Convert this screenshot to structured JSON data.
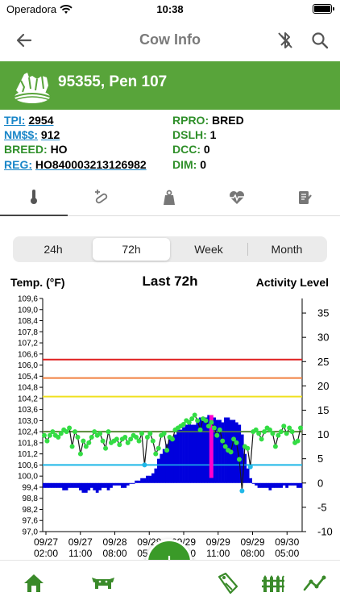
{
  "status_bar": {
    "carrier": "Operadora",
    "time": "10:38"
  },
  "nav": {
    "title": "Cow Info",
    "icons": [
      "back-arrow-icon",
      "bluetooth-disabled-icon",
      "search-icon"
    ]
  },
  "cow": {
    "title": "95355, Pen 107"
  },
  "info_left": [
    {
      "key": "TPI:",
      "value": "2954",
      "link": true
    },
    {
      "key": "NM$$:",
      "value": "912",
      "link": true
    },
    {
      "key": "BREED:",
      "value": "HO",
      "link": false
    },
    {
      "key": "REG:",
      "value": "HO840003213126982",
      "link": true
    }
  ],
  "info_right": [
    {
      "key": "RPRO:",
      "value": "BRED"
    },
    {
      "key": "DSLH:",
      "value": "1"
    },
    {
      "key": "DCC:",
      "value": "0"
    },
    {
      "key": "DIM:",
      "value": "0"
    }
  ],
  "tabs": [
    "thermometer-icon",
    "medication-icon",
    "weight-icon",
    "heartbeat-icon",
    "notes-icon"
  ],
  "periods": {
    "options": [
      "24h",
      "72h",
      "Week",
      "Month"
    ],
    "selected": "72h"
  },
  "chart_header": {
    "left": "Temp. (°F)",
    "center": "Last 72h",
    "right": "Activity Level"
  },
  "chart_data": {
    "type": "line",
    "title": "Last 72h",
    "ylabel": "Temp. (°F)",
    "y2label": "Activity Level",
    "ylim": [
      97.0,
      109.6
    ],
    "y2lim": [
      -10,
      38
    ],
    "left_ticks": [
      "109,6",
      "109,0",
      "108,4",
      "107,8",
      "107,2",
      "106,6",
      "106,0",
      "105,4",
      "104,8",
      "104,2",
      "103,6",
      "103,0",
      "102,4",
      "101,8",
      "101,2",
      "100,6",
      "100,0",
      "99,4",
      "98,8",
      "98,2",
      "97,6",
      "97,0"
    ],
    "right_ticks": [
      "35",
      "30",
      "25",
      "20",
      "15",
      "10",
      "5",
      "0",
      "-5",
      "-10"
    ],
    "x_ticks": [
      "09/27\n02:00",
      "09/27\n11:00",
      "09/28\n08:00",
      "09/28\n05:00",
      "09/29\n02:00",
      "09/29\n11:00",
      "09/29\n08:00",
      "09/30\n05:00"
    ],
    "reference_lines": [
      {
        "value": 106.3,
        "color": "#e02020"
      },
      {
        "value": 105.3,
        "color": "#f08040"
      },
      {
        "value": 104.3,
        "color": "#f0e020"
      },
      {
        "value": 102.4,
        "color": "#5a8a3a"
      },
      {
        "value": 100.6,
        "color": "#20b8e8"
      }
    ],
    "temperature_series": {
      "name": "Temperature",
      "color": "#1a1a1a",
      "point_color": "#33dd44",
      "values": [
        102.2,
        101.9,
        102.2,
        102.4,
        102.2,
        102.1,
        102.3,
        102.5,
        102.4,
        102.6,
        101.6,
        102.4,
        102.1,
        101.2,
        101.9,
        101.6,
        101.8,
        102.1,
        102.4,
        102.2,
        102.3,
        101.9,
        101.5,
        102.4,
        101.8,
        101.9,
        102.0,
        101.7,
        102.0,
        102.1,
        101.8,
        102.0,
        102.2,
        102.1,
        101.9,
        102.3,
        100.6,
        102.1,
        102.3,
        101.9,
        101.2,
        101.5,
        102.2,
        102.3,
        101.4,
        102.1,
        102.0,
        102.5,
        102.6,
        102.7,
        102.8,
        103.0,
        102.9,
        103.1,
        103.3,
        103.0,
        102.5,
        103.1,
        103.0,
        102.7,
        102.9,
        102.6,
        102.2,
        102.5,
        101.9,
        101.6,
        101.4,
        101.3,
        102.0,
        101.8,
        100.9,
        99.2,
        101.6,
        101.5,
        100.5,
        102.4,
        102.5,
        102.3,
        102.0,
        102.4,
        102.6,
        102.5,
        102.3,
        101.6,
        102.2,
        102.4,
        102.7,
        102.3,
        102.6,
        102.4,
        101.8,
        101.9,
        102.6
      ]
    },
    "activity_series": {
      "name": "Activity Level",
      "color": "#0000dd",
      "values": [
        -1,
        -1,
        -1,
        -1,
        -1,
        -1,
        -1,
        -1.5,
        -1.5,
        -1,
        -1,
        -1,
        -1,
        -1.5,
        -2,
        -2,
        -1.5,
        -1,
        -1.5,
        -2,
        -1.5,
        -1,
        -1,
        -1.5,
        -1,
        -0.5,
        -0.5,
        -0.5,
        -1,
        -1,
        -0.5,
        0,
        0,
        0.5,
        0.5,
        1,
        1,
        1.5,
        1.5,
        2,
        3,
        5,
        6,
        7,
        8,
        9,
        9.5,
        10,
        11,
        11,
        11.5,
        12,
        12.5,
        12,
        12,
        13,
        13.5,
        13,
        13.5,
        14,
        14,
        13.5,
        13,
        13,
        12.5,
        13.5,
        13.5,
        13,
        13,
        12.5,
        12,
        10,
        6,
        3,
        1,
        0,
        -0.5,
        -1,
        -1,
        -1,
        -1,
        -1.5,
        -1,
        -1,
        -1,
        -1,
        -0.5,
        -1,
        -0.5,
        -0.5,
        -0.5,
        -1,
        -1
      ]
    },
    "event_marker": {
      "color": "#ff00cc",
      "label": ""
    },
    "grid": false,
    "legend": "none"
  },
  "bottom_nav": [
    "home-icon",
    "cow-herd-icon",
    "add-button",
    "tag-icon",
    "fence-icon",
    "trend-chart-icon"
  ],
  "fab": {
    "label": "+"
  }
}
